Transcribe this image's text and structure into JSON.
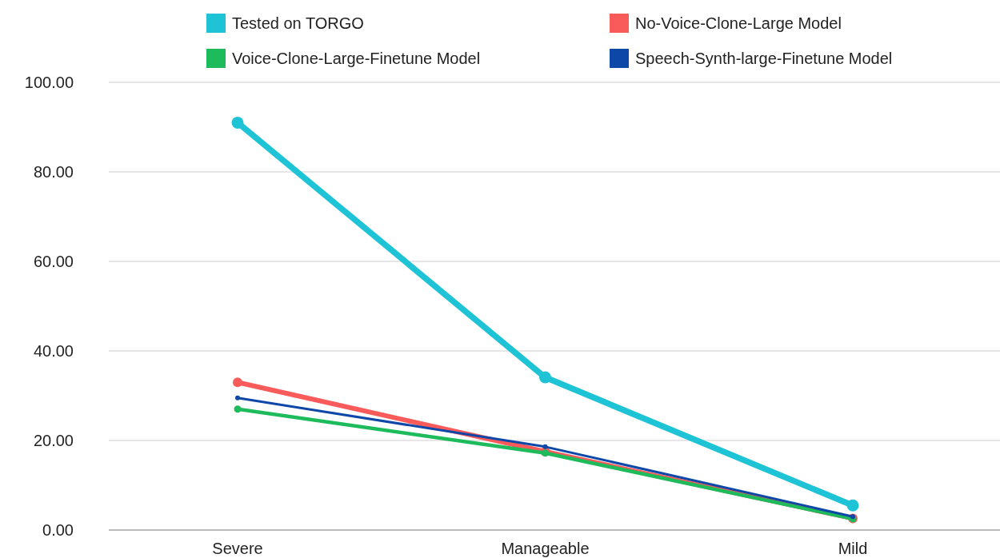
{
  "chart_data": {
    "type": "line",
    "categories": [
      "Severe",
      "Manageable",
      "Mild"
    ],
    "series": [
      {
        "name": "Tested on TORGO",
        "color": "#1fc3d6",
        "values": [
          91.0,
          34.1,
          5.5
        ]
      },
      {
        "name": "No-Voice-Clone-Large Model",
        "color": "#f95a5a",
        "values": [
          33.0,
          17.5,
          2.6
        ]
      },
      {
        "name": "Voice-Clone-Large-Finetune Model",
        "color": "#1dbb5c",
        "values": [
          27.0,
          17.2,
          2.5
        ]
      },
      {
        "name": "Speech-Synth-large-Finetune Model",
        "color": "#0d47a8",
        "values": [
          29.5,
          18.6,
          3.0
        ]
      }
    ],
    "ylim": [
      0,
      100
    ],
    "yticks": [
      {
        "value": 0,
        "label": "0.00"
      },
      {
        "value": 20,
        "label": "20.00"
      },
      {
        "value": 40,
        "label": "40.00"
      },
      {
        "value": 60,
        "label": "60.00"
      },
      {
        "value": 80,
        "label": "80.00"
      },
      {
        "value": 100,
        "label": "100.00"
      }
    ],
    "grid": "y",
    "legend": "top",
    "marker": "circle",
    "line_style": "solid"
  }
}
